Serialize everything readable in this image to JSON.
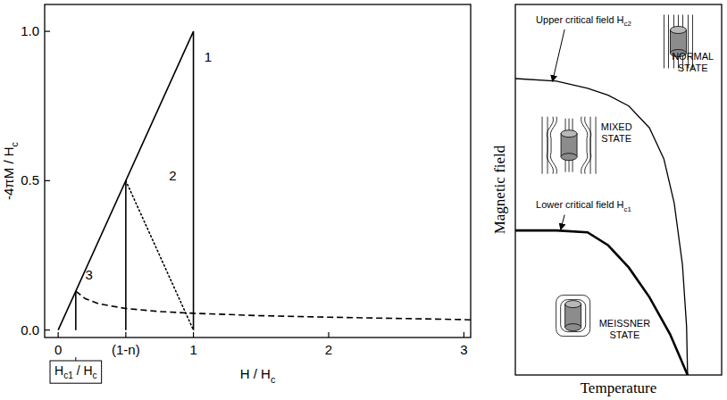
{
  "chart_data": [
    {
      "type": "line",
      "xlabel": "H / Hc",
      "ylabel": "-4πM / Hc",
      "xlim": [
        -0.1,
        3.05
      ],
      "ylim": [
        -0.025,
        1.09
      ],
      "xticks": [
        0,
        {
          "value": 0.5,
          "label": "(1-n)"
        },
        1,
        2,
        3
      ],
      "yticks": [
        {
          "value": 0,
          "label": "0.0"
        },
        {
          "value": 0.5,
          "label": "0.5"
        },
        {
          "value": 1,
          "label": "1.0"
        }
      ],
      "series": [
        {
          "x": [
            0,
            1,
            1
          ],
          "values": [
            0,
            1,
            0
          ],
          "color": "#000000",
          "line_style": "solid"
        },
        {
          "x": [
            0.5,
            0.5
          ],
          "values": [
            0,
            0.5
          ],
          "color": "#000000",
          "line_style": "solid"
        },
        {
          "x": [
            0.5,
            1
          ],
          "values": [
            0.5,
            0
          ],
          "color": "#000000",
          "line_style": "dotted"
        },
        {
          "x": [
            0.13,
            0.13
          ],
          "values": [
            0,
            0.13
          ],
          "color": "#000000",
          "line_style": "solid"
        },
        {
          "x": [
            0.13,
            0.2,
            0.3,
            0.5,
            0.75,
            1,
            1.5,
            2,
            2.5,
            3,
            3.05
          ],
          "values": [
            0.13,
            0.105,
            0.088,
            0.072,
            0.062,
            0.056,
            0.048,
            0.043,
            0.039,
            0.035,
            0.034
          ],
          "color": "#000000",
          "line_style": "dashed"
        }
      ],
      "annotations": [
        {
          "text": "1",
          "x": 1.08,
          "y": 0.9
        },
        {
          "text": "2",
          "x": 0.82,
          "y": 0.5
        },
        {
          "text": "3",
          "x": 0.2,
          "y": 0.17
        }
      ],
      "box_label": {
        "text": "Hc1 / Hc",
        "x": 0.13
      }
    },
    {
      "type": "line",
      "xlabel": "Temperature",
      "ylabel": "Magnetic field",
      "xlim": [
        0,
        1
      ],
      "ylim": [
        0,
        1
      ],
      "tick_labels": false,
      "series": [
        {
          "x": [
            0,
            0.2,
            0.35,
            0.45,
            0.55,
            0.65,
            0.72,
            0.77,
            0.81,
            0.83,
            0.835
          ],
          "values": [
            0.8,
            0.793,
            0.774,
            0.755,
            0.726,
            0.667,
            0.583,
            0.464,
            0.298,
            0.131,
            0
          ],
          "color": "#000000",
          "line_style": "solid"
        },
        {
          "x": [
            0,
            0.2,
            0.35,
            0.45,
            0.55,
            0.65,
            0.75,
            0.835
          ],
          "values": [
            0.39,
            0.39,
            0.385,
            0.35,
            0.29,
            0.21,
            0.11,
            0
          ],
          "color": "#000000",
          "line_style": "solid"
        }
      ],
      "annotations": [
        {
          "text": "Upper critical field Hc2",
          "x": 0.1,
          "y": 0.95,
          "arrow_to": [
            0.18,
            0.79
          ]
        },
        {
          "text": "Lower critical field Hc1",
          "x": 0.1,
          "y": 0.45,
          "arrow_to": [
            0.22,
            0.39
          ]
        }
      ],
      "regions": [
        {
          "lines": [
            "NORMAL",
            "STATE"
          ],
          "x": 0.86,
          "y": 0.85
        },
        {
          "lines": [
            "MIXED",
            "STATE"
          ],
          "x": 0.49,
          "y": 0.66
        },
        {
          "lines": [
            "MEISSNER",
            "STATE"
          ],
          "x": 0.53,
          "y": 0.13
        }
      ]
    }
  ]
}
